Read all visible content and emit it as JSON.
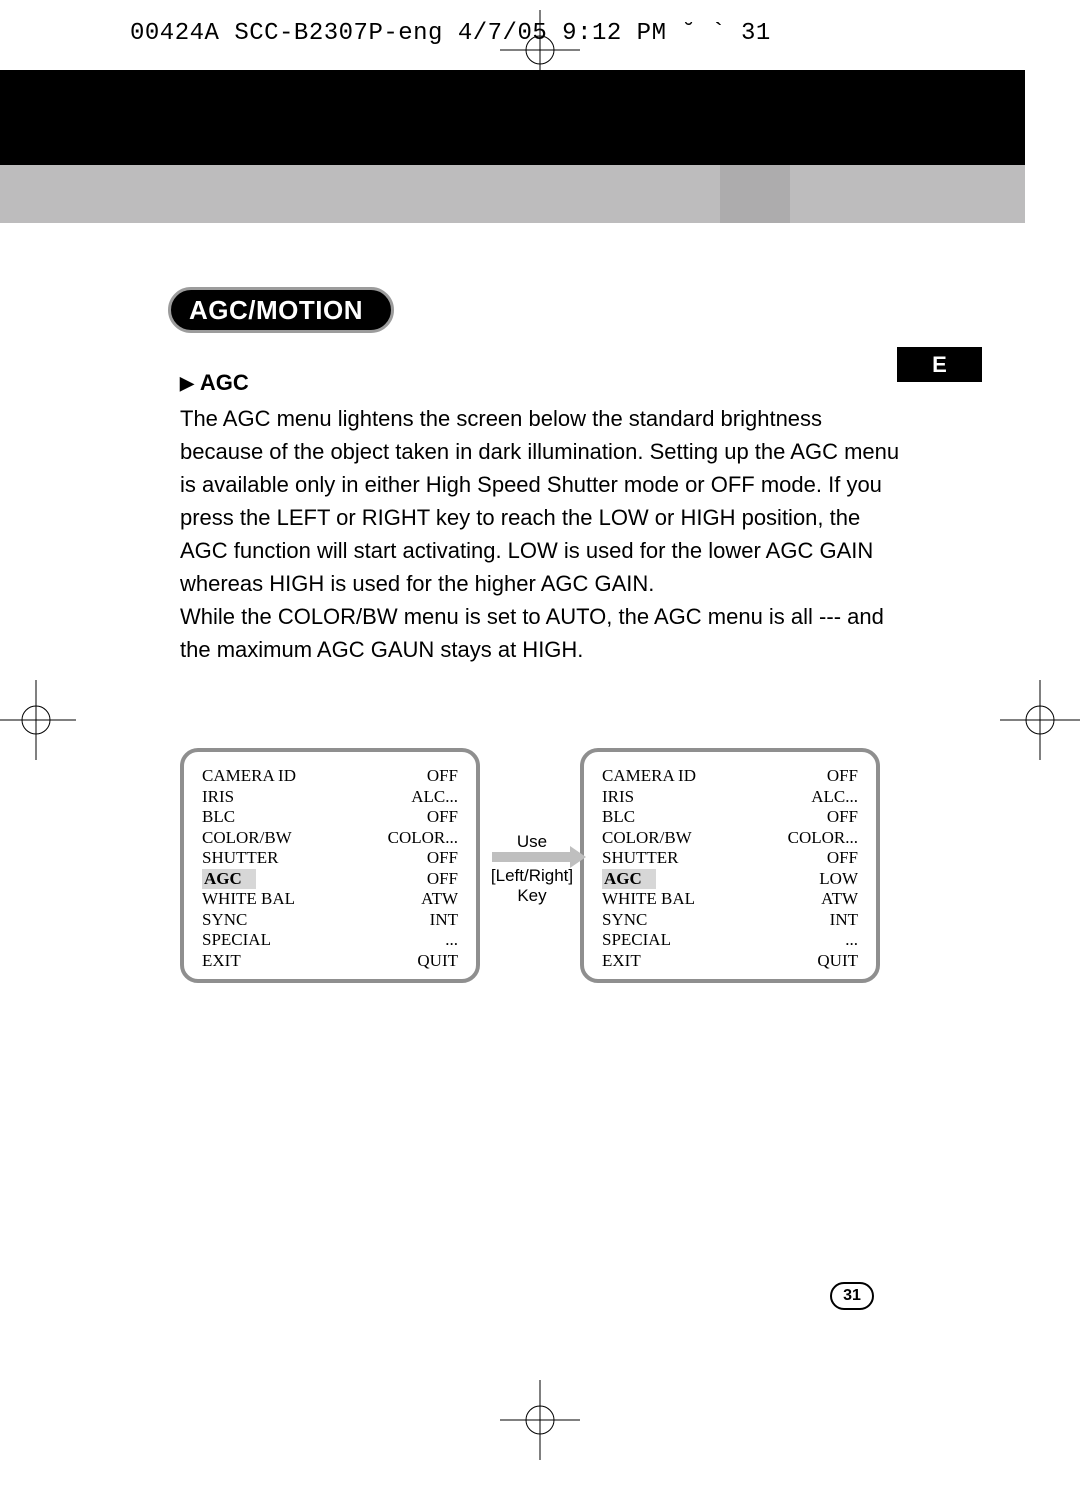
{
  "header_line": "00424A SCC-B2307P-eng  4/7/05 9:12 PM  ˘   `   31",
  "black_bar_color": "#000000",
  "grey_bar_color": "#bdbcbd",
  "section_title": "AGC/MOTION",
  "lang_badge": "E",
  "subheading_marker": "▶",
  "subheading": "AGC",
  "body_text": "The AGC menu lightens the screen below the standard brightness because of the object taken in dark illumination. Setting up the AGC menu is available only in either High Speed Shutter mode or OFF mode. If you press the LEFT or RIGHT key to reach the LOW or HIGH position, the AGC function will start activating. LOW is used for the lower AGC GAIN whereas HIGH is used for the higher AGC GAIN.\nWhile the COLOR/BW menu is set to AUTO, the AGC menu is all --- and the maximum AGC GAUN stays at HIGH.",
  "arrow": {
    "line1": "Use",
    "line2": "[Left/Right]",
    "line3": "Key"
  },
  "menu_left": {
    "rows": [
      {
        "k": "CAMERA ID",
        "v": "OFF"
      },
      {
        "k": "IRIS",
        "v": "ALC..."
      },
      {
        "k": "BLC",
        "v": "OFF"
      },
      {
        "k": "COLOR/BW",
        "v": "COLOR..."
      },
      {
        "k": "SHUTTER",
        "v": "OFF"
      },
      {
        "k": "AGC",
        "v": "OFF",
        "hl": true
      },
      {
        "k": "WHITE BAL",
        "v": "ATW"
      },
      {
        "k": "SYNC",
        "v": "INT"
      },
      {
        "k": "SPECIAL",
        "v": "..."
      },
      {
        "k": "EXIT",
        "v": "QUIT"
      }
    ]
  },
  "menu_right": {
    "rows": [
      {
        "k": "CAMERA ID",
        "v": "OFF"
      },
      {
        "k": "IRIS",
        "v": "ALC..."
      },
      {
        "k": "BLC",
        "v": "OFF"
      },
      {
        "k": "COLOR/BW",
        "v": "COLOR..."
      },
      {
        "k": "SHUTTER",
        "v": "OFF"
      },
      {
        "k": "AGC",
        "v": "LOW",
        "hl": true
      },
      {
        "k": "WHITE BAL",
        "v": "ATW"
      },
      {
        "k": "SYNC",
        "v": "INT"
      },
      {
        "k": "SPECIAL",
        "v": "..."
      },
      {
        "k": "EXIT",
        "v": "QUIT"
      }
    ]
  },
  "page_number": "31"
}
